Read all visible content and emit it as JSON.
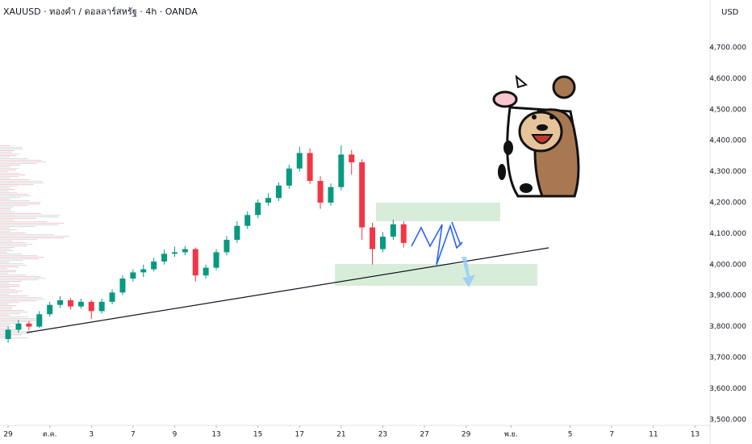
{
  "chart_data": {
    "type": "candlestick",
    "title": "XAUUSD · ทองคำ / ดอลลาร์สหรัฐ · 4h · OANDA",
    "currency": "USD",
    "x": [
      0,
      0.5,
      1,
      1.5,
      2,
      2.5,
      3,
      3.5,
      4,
      4.5,
      5,
      5.5,
      6,
      6.5,
      7,
      7.5,
      8,
      8.5,
      9,
      9.5,
      10,
      10.5,
      11,
      11.5,
      12,
      12.5,
      13,
      13.5,
      14,
      14.5,
      15,
      15.5,
      16,
      16.5,
      17,
      17.5,
      18,
      18.5,
      19
    ],
    "open": [
      3760,
      3790,
      3810,
      3800,
      3840,
      3870,
      3885,
      3865,
      3880,
      3850,
      3880,
      3910,
      3955,
      3975,
      3985,
      4010,
      4035,
      4040,
      4050,
      3965,
      3990,
      4040,
      4080,
      4125,
      4160,
      4200,
      4215,
      4255,
      4310,
      4360,
      4270,
      4200,
      4250,
      4355,
      4330,
      4120,
      4050,
      4090,
      4130
    ],
    "high": [
      3800,
      3822,
      3818,
      3850,
      3880,
      3898,
      3892,
      3890,
      3886,
      3890,
      3920,
      3965,
      3985,
      4000,
      4022,
      4048,
      4058,
      4060,
      4055,
      4000,
      4050,
      4092,
      4140,
      4172,
      4210,
      4230,
      4265,
      4322,
      4380,
      4375,
      4285,
      4262,
      4385,
      4370,
      4340,
      4135,
      4105,
      4145,
      4140
    ],
    "low": [
      3748,
      3780,
      3788,
      3795,
      3832,
      3860,
      3855,
      3858,
      3825,
      3842,
      3872,
      3902,
      3945,
      3960,
      3978,
      4000,
      4025,
      4030,
      3945,
      3955,
      3982,
      4030,
      4070,
      4115,
      4150,
      4190,
      4205,
      4245,
      4300,
      4260,
      4180,
      4190,
      4240,
      4290,
      4080,
      4000,
      4040,
      4080,
      4055
    ],
    "close": [
      3790,
      3810,
      3800,
      3840,
      3870,
      3885,
      3865,
      3880,
      3850,
      3880,
      3910,
      3955,
      3975,
      3985,
      4010,
      4035,
      4040,
      4050,
      3965,
      3990,
      4040,
      4080,
      4125,
      4160,
      4200,
      4215,
      4255,
      4310,
      4360,
      4270,
      4200,
      4250,
      4355,
      4330,
      4120,
      4050,
      4090,
      4130,
      4070
    ],
    "up_color": "#089981",
    "down_color": "#f23645",
    "xlim": [
      -0.39,
      33.72
    ],
    "xticks": [
      {
        "value": 0,
        "label": "29"
      },
      {
        "value": 2,
        "label": "ต.ค."
      },
      {
        "value": 4,
        "label": "3"
      },
      {
        "value": 6,
        "label": "7"
      },
      {
        "value": 8,
        "label": "9"
      },
      {
        "value": 10,
        "label": "13"
      },
      {
        "value": 12,
        "label": "15"
      },
      {
        "value": 14,
        "label": "17"
      },
      {
        "value": 16,
        "label": "21"
      },
      {
        "value": 18,
        "label": "23"
      },
      {
        "value": 20,
        "label": "27"
      },
      {
        "value": 22,
        "label": "29"
      },
      {
        "value": 24.16,
        "label": "พ.ย."
      },
      {
        "value": 27,
        "label": "5"
      },
      {
        "value": 29,
        "label": "7"
      },
      {
        "value": 31,
        "label": "11"
      },
      {
        "value": 33,
        "label": "13"
      }
    ],
    "ylim": [
      3473.4,
      4853.6
    ],
    "yticks": [
      {
        "value": 3500,
        "label": "3,500.000"
      },
      {
        "value": 3600,
        "label": "3,600.000"
      },
      {
        "value": 3700,
        "label": "3,700.000"
      },
      {
        "value": 3800,
        "label": "3,800.000"
      },
      {
        "value": 3900,
        "label": "3,900.000"
      },
      {
        "value": 4000,
        "label": "4,000.000"
      },
      {
        "value": 4100,
        "label": "4,100.000"
      },
      {
        "value": 4200,
        "label": "4,200.000"
      },
      {
        "value": 4300,
        "label": "4,300.000"
      },
      {
        "value": 4400,
        "label": "4,400.000"
      },
      {
        "value": 4500,
        "label": "4,500.000"
      },
      {
        "value": 4600,
        "label": "4,600.000"
      },
      {
        "value": 4700,
        "label": "4,700.000"
      }
    ]
  }
}
